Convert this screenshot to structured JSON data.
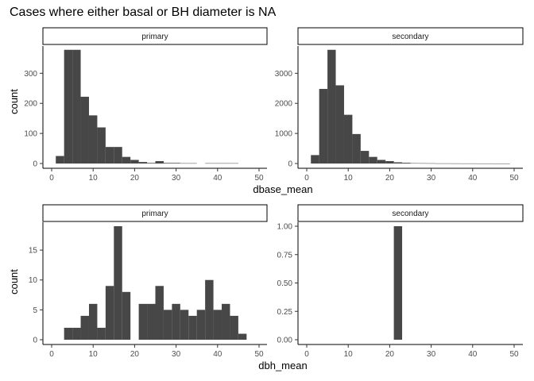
{
  "title": "Cases where either basal or BH diameter is NA",
  "chart_data": [
    {
      "type": "bar",
      "panel": "primary",
      "row": "dbase_mean",
      "xlabel": "dbase_mean",
      "ylabel": "count",
      "xlim": [
        0,
        50
      ],
      "ylim": [
        0,
        380
      ],
      "xticks": [
        0,
        10,
        20,
        30,
        40,
        50
      ],
      "yticks": [
        0,
        100,
        200,
        300
      ],
      "bin_width": 2,
      "x": [
        2,
        4,
        6,
        8,
        10,
        12,
        14,
        16,
        18,
        20,
        22,
        24,
        26,
        28,
        30,
        32,
        34,
        36,
        38,
        40,
        42,
        44
      ],
      "values": [
        25,
        378,
        378,
        222,
        160,
        120,
        55,
        55,
        22,
        12,
        5,
        2,
        8,
        2,
        2,
        1,
        1,
        0,
        1,
        1,
        1,
        1
      ]
    },
    {
      "type": "bar",
      "panel": "secondary",
      "row": "dbase_mean",
      "xlabel": "dbase_mean",
      "ylabel": "count",
      "xlim": [
        0,
        50
      ],
      "ylim": [
        0,
        3800
      ],
      "xticks": [
        0,
        10,
        20,
        30,
        40,
        50
      ],
      "yticks": [
        0,
        1000,
        2000,
        3000
      ],
      "bin_width": 2,
      "x": [
        2,
        4,
        6,
        8,
        10,
        12,
        14,
        16,
        18,
        20,
        22,
        24,
        26,
        28,
        30,
        32,
        34,
        36,
        38,
        40,
        42,
        44,
        46,
        48
      ],
      "values": [
        280,
        2480,
        3780,
        2600,
        1620,
        980,
        420,
        220,
        120,
        80,
        40,
        25,
        12,
        10,
        8,
        5,
        5,
        4,
        3,
        3,
        2,
        2,
        1,
        1
      ]
    },
    {
      "type": "bar",
      "panel": "primary",
      "row": "dbh_mean",
      "xlabel": "dbh_mean",
      "ylabel": "count",
      "xlim": [
        0,
        50
      ],
      "ylim": [
        0,
        19
      ],
      "xticks": [
        0,
        10,
        20,
        30,
        40,
        50
      ],
      "yticks": [
        0,
        5,
        10,
        15
      ],
      "bin_width": 2,
      "x": [
        4,
        6,
        8,
        10,
        12,
        14,
        16,
        18,
        20,
        22,
        24,
        26,
        28,
        30,
        32,
        34,
        36,
        38,
        40,
        42,
        44,
        46
      ],
      "values": [
        2,
        2,
        4,
        6,
        2,
        9,
        19,
        8,
        0,
        6,
        6,
        9,
        5,
        6,
        5,
        4,
        5,
        10,
        5,
        6,
        4,
        1
      ]
    },
    {
      "type": "bar",
      "panel": "secondary",
      "row": "dbh_mean",
      "xlabel": "dbh_mean",
      "ylabel": "count",
      "xlim": [
        0,
        50
      ],
      "ylim": [
        0,
        1.0
      ],
      "xticks": [
        0,
        10,
        20,
        30,
        40,
        50
      ],
      "yticks": [
        0.0,
        0.25,
        0.5,
        0.75,
        1.0
      ],
      "ytick_labels": [
        "0.00",
        "0.25",
        "0.50",
        "0.75",
        "1.00"
      ],
      "bin_width": 2,
      "x": [
        22
      ],
      "values": [
        1
      ]
    }
  ]
}
